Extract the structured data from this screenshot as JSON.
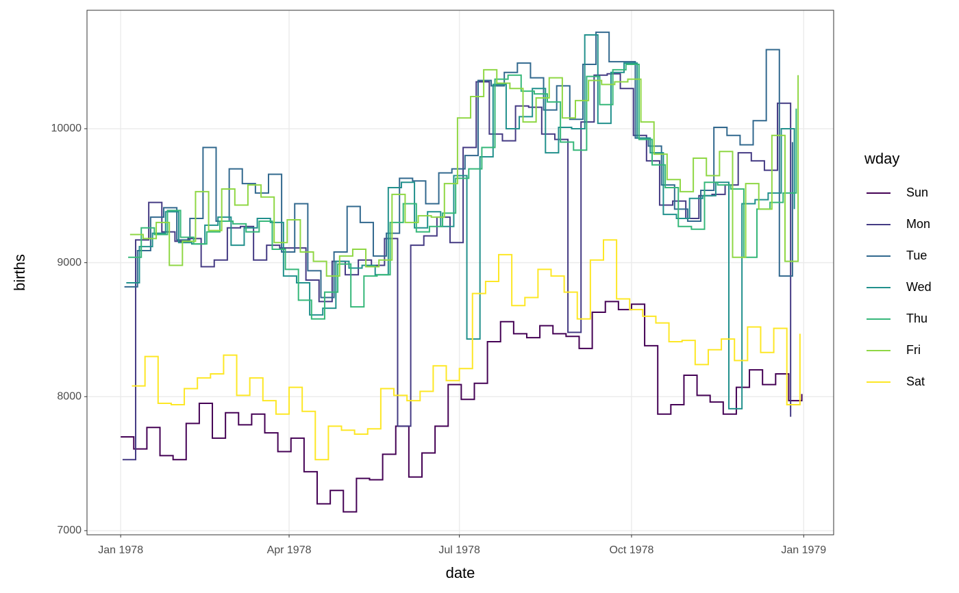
{
  "chart_data": {
    "type": "step",
    "x_label": "date",
    "y_label": "births",
    "legend_title": "wday",
    "legend": "right",
    "grid": true,
    "xlim": [
      "1977-12-14",
      "1979-01-17"
    ],
    "xticks": [
      {
        "value": "1978-01-01",
        "label": "Jan 1978"
      },
      {
        "value": "1978-04-01",
        "label": "Apr 1978"
      },
      {
        "value": "1978-07-01",
        "label": "Jul 1978"
      },
      {
        "value": "1978-10-01",
        "label": "Oct 1978"
      },
      {
        "value": "1979-01-01",
        "label": "Jan 1979"
      }
    ],
    "ylim": [
      6969,
      10884
    ],
    "yticks": [
      7000,
      8000,
      9000,
      10000
    ],
    "series": [
      {
        "name": "Sun",
        "color": "#440154",
        "x": [
          "1978-01-01",
          "1978-01-08",
          "1978-01-15",
          "1978-01-22",
          "1978-01-29",
          "1978-02-05",
          "1978-02-12",
          "1978-02-19",
          "1978-02-26",
          "1978-03-05",
          "1978-03-12",
          "1978-03-19",
          "1978-03-26",
          "1978-04-02",
          "1978-04-09",
          "1978-04-16",
          "1978-04-23",
          "1978-04-30",
          "1978-05-07",
          "1978-05-14",
          "1978-05-21",
          "1978-05-28",
          "1978-06-04",
          "1978-06-11",
          "1978-06-18",
          "1978-06-25",
          "1978-07-02",
          "1978-07-09",
          "1978-07-16",
          "1978-07-23",
          "1978-07-30",
          "1978-08-06",
          "1978-08-13",
          "1978-08-20",
          "1978-08-27",
          "1978-09-03",
          "1978-09-10",
          "1978-09-17",
          "1978-09-24",
          "1978-10-01",
          "1978-10-08",
          "1978-10-15",
          "1978-10-22",
          "1978-10-29",
          "1978-11-05",
          "1978-11-12",
          "1978-11-19",
          "1978-11-26",
          "1978-12-03",
          "1978-12-10",
          "1978-12-17",
          "1978-12-24",
          "1978-12-31"
        ],
        "values": [
          7700,
          7610,
          7770,
          7560,
          7530,
          7800,
          7950,
          7690,
          7880,
          7790,
          7870,
          7730,
          7590,
          7690,
          7440,
          7200,
          7300,
          7140,
          7390,
          7380,
          7570,
          7780,
          7400,
          7580,
          7780,
          8090,
          7980,
          8100,
          8410,
          8560,
          8470,
          8440,
          8530,
          8470,
          8450,
          8360,
          8630,
          8710,
          8650,
          8690,
          8380,
          7870,
          7940,
          8160,
          8010,
          7960,
          7870,
          8070,
          8200,
          8090,
          8170,
          7970,
          8020
        ]
      },
      {
        "name": "Mon",
        "color": "#443A83",
        "x": [
          "1978-01-02",
          "1978-01-09",
          "1978-01-16",
          "1978-01-23",
          "1978-01-30",
          "1978-02-06",
          "1978-02-13",
          "1978-02-20",
          "1978-02-27",
          "1978-03-06",
          "1978-03-13",
          "1978-03-20",
          "1978-03-27",
          "1978-04-03",
          "1978-04-10",
          "1978-04-17",
          "1978-04-24",
          "1978-05-01",
          "1978-05-08",
          "1978-05-15",
          "1978-05-22",
          "1978-05-29",
          "1978-06-05",
          "1978-06-12",
          "1978-06-19",
          "1978-06-26",
          "1978-07-03",
          "1978-07-10",
          "1978-07-17",
          "1978-07-24",
          "1978-07-31",
          "1978-08-07",
          "1978-08-14",
          "1978-08-21",
          "1978-08-28",
          "1978-09-04",
          "1978-09-11",
          "1978-09-18",
          "1978-09-25",
          "1978-10-02",
          "1978-10-09",
          "1978-10-16",
          "1978-10-23",
          "1978-10-30",
          "1978-11-06",
          "1978-11-13",
          "1978-11-20",
          "1978-11-27",
          "1978-12-04",
          "1978-12-11",
          "1978-12-18",
          "1978-12-25"
        ],
        "values": [
          7530,
          9170,
          9450,
          9230,
          9160,
          9180,
          8970,
          9020,
          9260,
          9270,
          9020,
          9130,
          9110,
          9110,
          8870,
          8710,
          9010,
          8910,
          9020,
          8980,
          9180,
          7780,
          9130,
          9200,
          9340,
          9150,
          9860,
          10350,
          9960,
          9910,
          10170,
          10160,
          9960,
          9920,
          8480,
          10050,
          10400,
          10410,
          10300,
          9950,
          9760,
          9430,
          9460,
          9330,
          9500,
          9510,
          9580,
          9820,
          9760,
          9690,
          10190,
          7850
        ]
      },
      {
        "name": "Tue",
        "color": "#31688E",
        "x": [
          "1978-01-03",
          "1978-01-10",
          "1978-01-17",
          "1978-01-24",
          "1978-01-31",
          "1978-02-07",
          "1978-02-14",
          "1978-02-21",
          "1978-02-28",
          "1978-03-07",
          "1978-03-14",
          "1978-03-21",
          "1978-03-28",
          "1978-04-04",
          "1978-04-11",
          "1978-04-18",
          "1978-04-25",
          "1978-05-02",
          "1978-05-09",
          "1978-05-16",
          "1978-05-23",
          "1978-05-30",
          "1978-06-06",
          "1978-06-13",
          "1978-06-20",
          "1978-06-27",
          "1978-07-04",
          "1978-07-11",
          "1978-07-18",
          "1978-07-25",
          "1978-08-01",
          "1978-08-08",
          "1978-08-15",
          "1978-08-22",
          "1978-08-29",
          "1978-09-05",
          "1978-09-12",
          "1978-09-19",
          "1978-09-26",
          "1978-10-03",
          "1978-10-10",
          "1978-10-17",
          "1978-10-24",
          "1978-10-31",
          "1978-11-07",
          "1978-11-14",
          "1978-11-21",
          "1978-11-28",
          "1978-12-05",
          "1978-12-12",
          "1978-12-19",
          "1978-12-26"
        ],
        "values": [
          8820,
          9090,
          9340,
          9410,
          9170,
          9330,
          9860,
          9310,
          9700,
          9590,
          9520,
          9660,
          9080,
          9440,
          8940,
          8740,
          9080,
          9420,
          9300,
          9050,
          9220,
          9630,
          9610,
          9440,
          9670,
          9700,
          9800,
          10360,
          10320,
          10420,
          10490,
          10380,
          10140,
          10320,
          10070,
          10480,
          10720,
          10500,
          10500,
          9930,
          9870,
          9580,
          9400,
          9310,
          9540,
          10010,
          9950,
          9880,
          10060,
          10590,
          8900,
          9900
        ]
      },
      {
        "name": "Wed",
        "color": "#21908C",
        "x": [
          "1978-01-04",
          "1978-01-11",
          "1978-01-18",
          "1978-01-25",
          "1978-02-01",
          "1978-02-08",
          "1978-02-15",
          "1978-02-22",
          "1978-03-01",
          "1978-03-08",
          "1978-03-15",
          "1978-03-22",
          "1978-03-29",
          "1978-04-05",
          "1978-04-12",
          "1978-04-19",
          "1978-04-26",
          "1978-05-03",
          "1978-05-10",
          "1978-05-17",
          "1978-05-24",
          "1978-05-31",
          "1978-06-07",
          "1978-06-14",
          "1978-06-21",
          "1978-06-28",
          "1978-07-05",
          "1978-07-12",
          "1978-07-19",
          "1978-07-26",
          "1978-08-02",
          "1978-08-09",
          "1978-08-16",
          "1978-08-23",
          "1978-08-30",
          "1978-09-06",
          "1978-09-13",
          "1978-09-20",
          "1978-09-27",
          "1978-10-04",
          "1978-10-11",
          "1978-10-18",
          "1978-10-25",
          "1978-11-01",
          "1978-11-08",
          "1978-11-15",
          "1978-11-22",
          "1978-11-29",
          "1978-12-06",
          "1978-12-13",
          "1978-12-20",
          "1978-12-27"
        ],
        "values": [
          8850,
          9120,
          9220,
          9380,
          9150,
          9140,
          9280,
          9340,
          9130,
          9260,
          9330,
          9300,
          8900,
          8850,
          8610,
          8660,
          9010,
          8960,
          8980,
          8910,
          9560,
          9600,
          9260,
          9380,
          9270,
          9650,
          8430,
          9790,
          10330,
          10000,
          10090,
          10300,
          9820,
          10010,
          10000,
          10700,
          10040,
          10420,
          10490,
          9930,
          9820,
          9360,
          9330,
          9480,
          9500,
          9600,
          7910,
          9440,
          9470,
          9520,
          10000,
          9400
        ]
      },
      {
        "name": "Thu",
        "color": "#35B779",
        "x": [
          "1978-01-05",
          "1978-01-12",
          "1978-01-19",
          "1978-01-26",
          "1978-02-02",
          "1978-02-09",
          "1978-02-16",
          "1978-02-23",
          "1978-03-02",
          "1978-03-09",
          "1978-03-16",
          "1978-03-23",
          "1978-03-30",
          "1978-04-06",
          "1978-04-13",
          "1978-04-20",
          "1978-04-27",
          "1978-05-04",
          "1978-05-11",
          "1978-05-18",
          "1978-05-25",
          "1978-06-01",
          "1978-06-08",
          "1978-06-15",
          "1978-06-22",
          "1978-06-29",
          "1978-07-06",
          "1978-07-13",
          "1978-07-20",
          "1978-07-27",
          "1978-08-03",
          "1978-08-10",
          "1978-08-17",
          "1978-08-24",
          "1978-08-31",
          "1978-09-07",
          "1978-09-14",
          "1978-09-21",
          "1978-09-28",
          "1978-10-05",
          "1978-10-12",
          "1978-10-19",
          "1978-10-26",
          "1978-11-02",
          "1978-11-09",
          "1978-11-16",
          "1978-11-23",
          "1978-11-30",
          "1978-12-07",
          "1978-12-14",
          "1978-12-21",
          "1978-12-28"
        ],
        "values": [
          9040,
          9260,
          9210,
          9390,
          9190,
          9140,
          9230,
          9310,
          9290,
          9230,
          9310,
          9100,
          8950,
          8720,
          8580,
          8780,
          8990,
          8670,
          8900,
          8910,
          9300,
          9440,
          9230,
          9270,
          9370,
          9630,
          9700,
          9860,
          10370,
          10400,
          10280,
          10260,
          10200,
          9900,
          9840,
          10390,
          10180,
          10440,
          10480,
          9920,
          9730,
          9560,
          9270,
          9250,
          9600,
          9580,
          9550,
          9040,
          9400,
          9450,
          9520,
          10150
        ]
      },
      {
        "name": "Fri",
        "color": "#8FD744",
        "x": [
          "1978-01-06",
          "1978-01-13",
          "1978-01-20",
          "1978-01-27",
          "1978-02-03",
          "1978-02-10",
          "1978-02-17",
          "1978-02-24",
          "1978-03-03",
          "1978-03-10",
          "1978-03-17",
          "1978-03-24",
          "1978-03-31",
          "1978-04-07",
          "1978-04-14",
          "1978-04-21",
          "1978-04-28",
          "1978-05-05",
          "1978-05-12",
          "1978-05-19",
          "1978-05-26",
          "1978-06-02",
          "1978-06-09",
          "1978-06-16",
          "1978-06-23",
          "1978-06-30",
          "1978-07-07",
          "1978-07-14",
          "1978-07-21",
          "1978-07-28",
          "1978-08-04",
          "1978-08-11",
          "1978-08-18",
          "1978-08-25",
          "1978-09-01",
          "1978-09-08",
          "1978-09-15",
          "1978-09-22",
          "1978-09-29",
          "1978-10-06",
          "1978-10-13",
          "1978-10-20",
          "1978-10-27",
          "1978-11-03",
          "1978-11-10",
          "1978-11-17",
          "1978-11-24",
          "1978-12-01",
          "1978-12-08",
          "1978-12-15",
          "1978-12-22",
          "1978-12-29"
        ],
        "values": [
          9210,
          9180,
          9300,
          8980,
          9160,
          9530,
          9240,
          9550,
          9430,
          9580,
          9490,
          9150,
          9320,
          9080,
          9010,
          8900,
          9050,
          9100,
          8970,
          9020,
          9510,
          9300,
          9350,
          9340,
          9590,
          10080,
          10240,
          10440,
          10340,
          10300,
          10050,
          10230,
          10380,
          10080,
          10210,
          10360,
          10330,
          10350,
          10370,
          10050,
          9810,
          9620,
          9530,
          9780,
          9650,
          9830,
          9040,
          9590,
          9400,
          9950,
          9010,
          10400
        ]
      },
      {
        "name": "Sat",
        "color": "#FDE725",
        "x": [
          "1978-01-07",
          "1978-01-14",
          "1978-01-21",
          "1978-01-28",
          "1978-02-04",
          "1978-02-11",
          "1978-02-18",
          "1978-02-25",
          "1978-03-04",
          "1978-03-11",
          "1978-03-18",
          "1978-03-25",
          "1978-04-01",
          "1978-04-08",
          "1978-04-15",
          "1978-04-22",
          "1978-04-29",
          "1978-05-06",
          "1978-05-13",
          "1978-05-20",
          "1978-05-27",
          "1978-06-03",
          "1978-06-10",
          "1978-06-17",
          "1978-06-24",
          "1978-07-01",
          "1978-07-08",
          "1978-07-15",
          "1978-07-22",
          "1978-07-29",
          "1978-08-05",
          "1978-08-12",
          "1978-08-19",
          "1978-08-26",
          "1978-09-02",
          "1978-09-09",
          "1978-09-16",
          "1978-09-23",
          "1978-09-30",
          "1978-10-07",
          "1978-10-14",
          "1978-10-21",
          "1978-10-28",
          "1978-11-04",
          "1978-11-11",
          "1978-11-18",
          "1978-11-25",
          "1978-12-02",
          "1978-12-09",
          "1978-12-16",
          "1978-12-23",
          "1978-12-30"
        ],
        "values": [
          8080,
          8300,
          7950,
          7940,
          8060,
          8140,
          8170,
          8310,
          8010,
          8140,
          7970,
          7870,
          8070,
          7890,
          7530,
          7780,
          7750,
          7720,
          7760,
          8060,
          8010,
          7970,
          8040,
          8230,
          8120,
          8210,
          8770,
          8860,
          9060,
          8680,
          8740,
          8950,
          8900,
          8780,
          8580,
          9020,
          9170,
          8730,
          8650,
          8600,
          8550,
          8410,
          8420,
          8240,
          8350,
          8430,
          8270,
          8520,
          8330,
          8510,
          7940,
          8470
        ]
      }
    ]
  }
}
